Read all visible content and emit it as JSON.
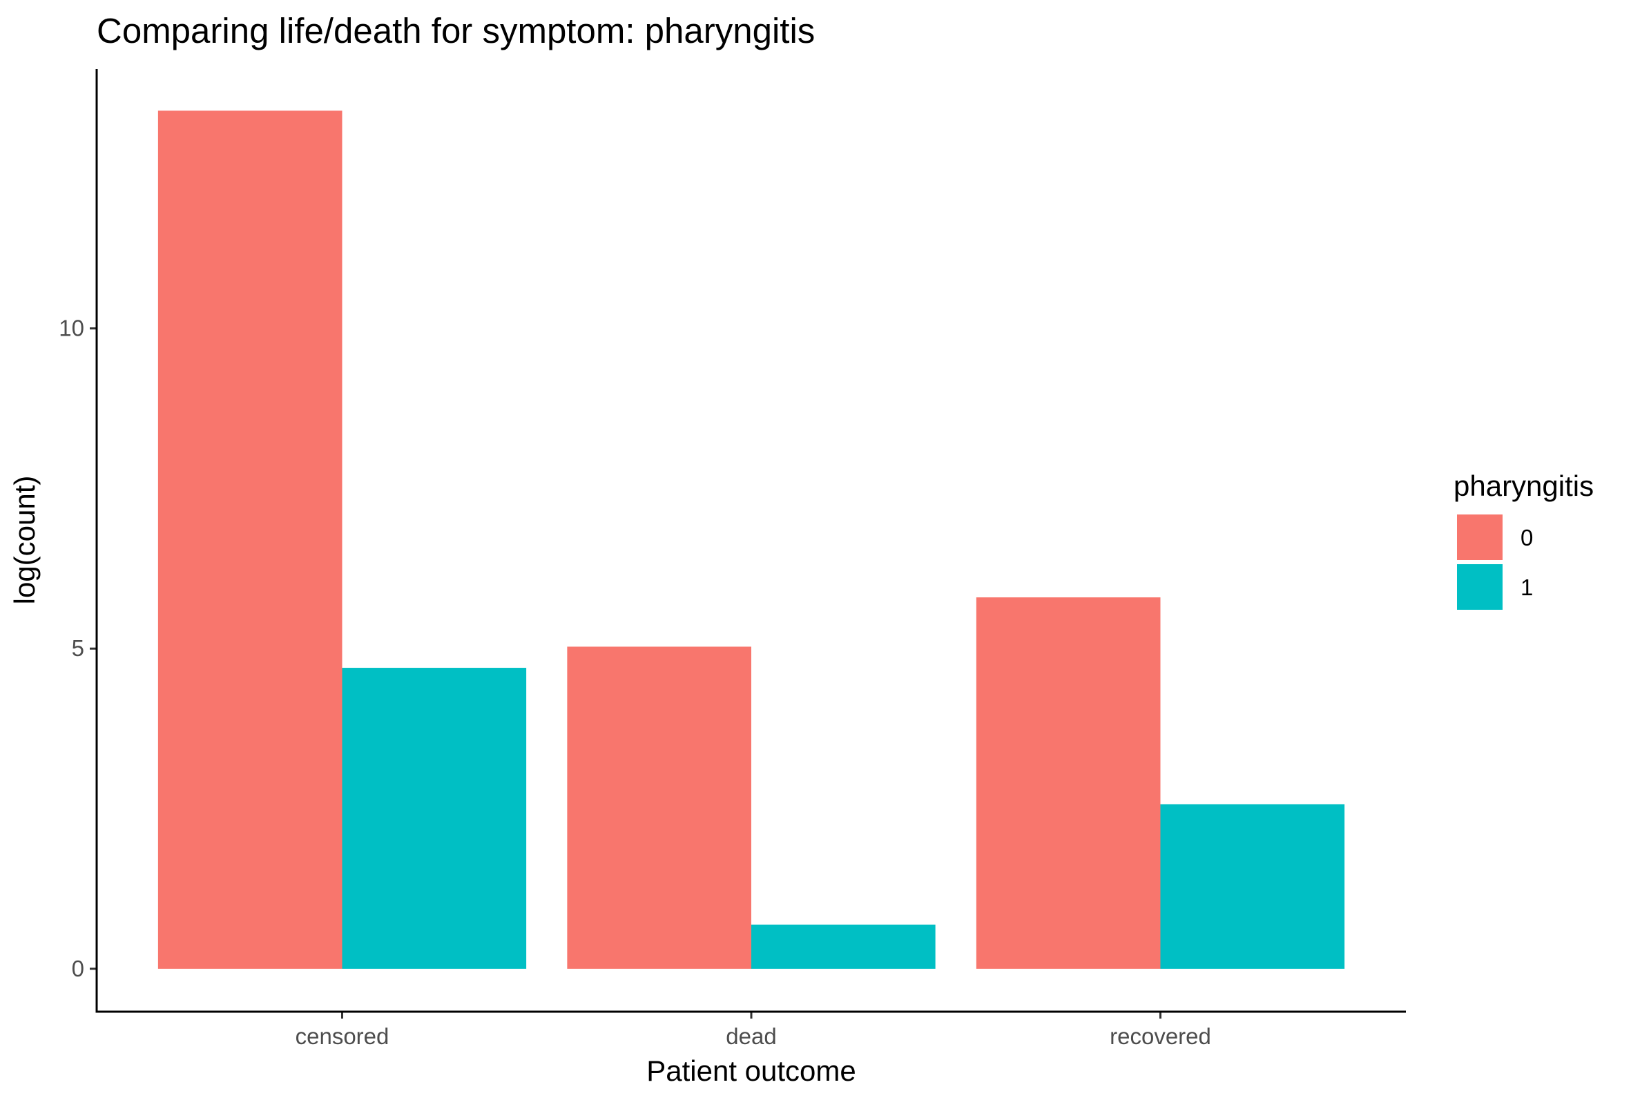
{
  "chart_data": {
    "type": "bar",
    "title": "Comparing life/death for symptom: pharyngitis",
    "xlabel": "Patient outcome",
    "ylabel": "log(count)",
    "categories": [
      "censored",
      "dead",
      "recovered"
    ],
    "series": [
      {
        "name": "0",
        "color": "#F8766D",
        "values": [
          13.4,
          5.03,
          5.8
        ]
      },
      {
        "name": "1",
        "color": "#00BFC4",
        "values": [
          4.7,
          0.69,
          2.57
        ]
      }
    ],
    "yticks": [
      0,
      5,
      10
    ],
    "ylim": [
      -0.67,
      14.05
    ],
    "legend": {
      "title": "pharyngitis",
      "position": "right"
    },
    "grid": false
  }
}
